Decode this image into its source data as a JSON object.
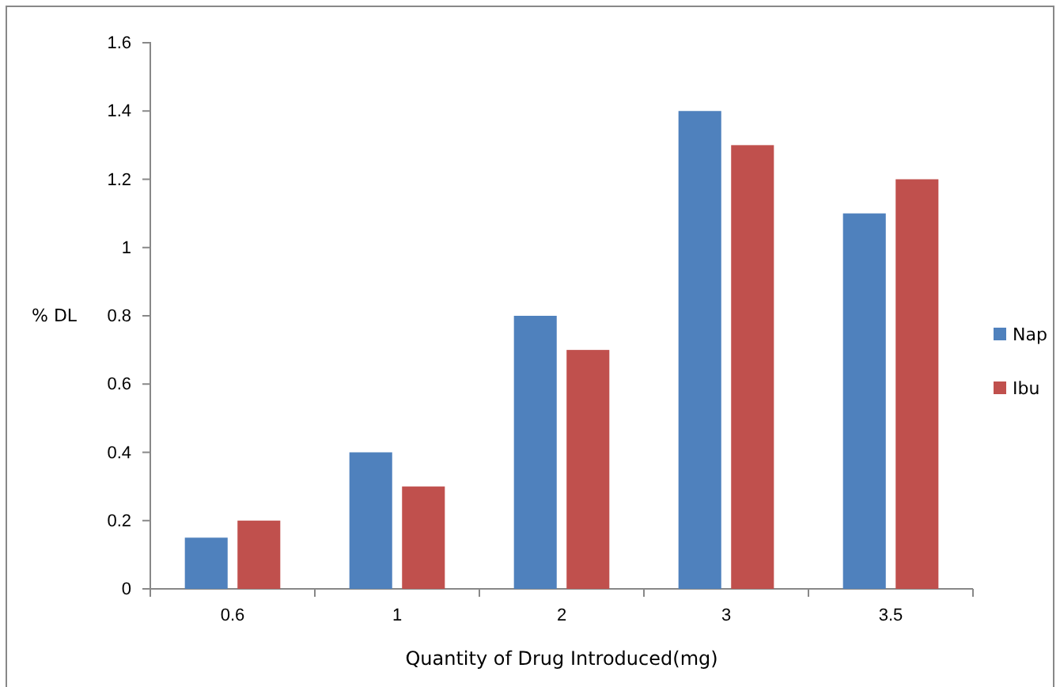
{
  "chart_data": {
    "type": "bar",
    "xlabel": "Quantity of Drug Introduced(mg)",
    "ylabel": "% DL",
    "categories": [
      "0.6",
      "1",
      "2",
      "3",
      "3.5"
    ],
    "series": [
      {
        "name": "Nap",
        "color": "#4f81bd",
        "values": [
          0.15,
          0.4,
          0.8,
          1.4,
          1.1
        ]
      },
      {
        "name": "Ibu",
        "color": "#c0504d",
        "values": [
          0.2,
          0.3,
          0.7,
          1.3,
          1.2
        ]
      }
    ],
    "ylim": [
      0,
      1.6
    ],
    "yticks": [
      0,
      0.2,
      0.4,
      0.6,
      0.8,
      1,
      1.2,
      1.4,
      1.6
    ],
    "grid": false,
    "legend": "right"
  }
}
